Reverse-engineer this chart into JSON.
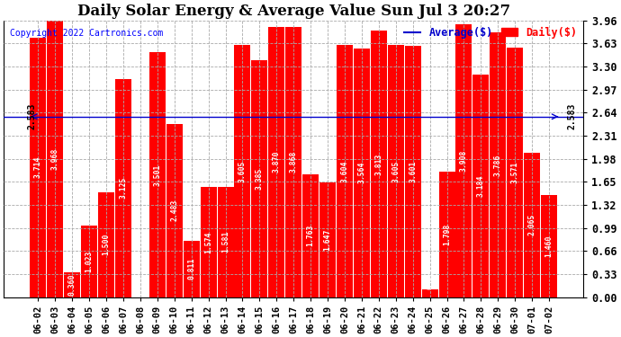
{
  "title": "Daily Solar Energy & Average Value Sun Jul 3 20:27",
  "copyright": "Copyright 2022 Cartronics.com",
  "legend_avg": "Average($)",
  "legend_daily": "Daily($)",
  "average_value": 2.583,
  "categories": [
    "06-02",
    "06-03",
    "06-04",
    "06-05",
    "06-06",
    "06-07",
    "06-08",
    "06-09",
    "06-10",
    "06-11",
    "06-12",
    "06-13",
    "06-14",
    "06-15",
    "06-16",
    "06-17",
    "06-18",
    "06-19",
    "06-20",
    "06-21",
    "06-22",
    "06-23",
    "06-24",
    "06-25",
    "06-26",
    "06-27",
    "06-28",
    "06-29",
    "06-30",
    "07-01",
    "07-02"
  ],
  "values": [
    3.714,
    3.968,
    0.36,
    1.023,
    1.5,
    3.125,
    0.0,
    3.501,
    2.483,
    0.811,
    1.574,
    1.581,
    3.605,
    3.385,
    3.87,
    3.868,
    1.763,
    1.647,
    3.604,
    3.564,
    3.813,
    3.605,
    3.601,
    0.114,
    1.798,
    3.908,
    3.184,
    3.786,
    3.571,
    2.065,
    1.46
  ],
  "bar_color": "#ff0000",
  "avg_line_color": "#0000cc",
  "background_color": "#ffffff",
  "plot_bg_color": "#ffffff",
  "grid_color": "#aaaaaa",
  "ylim": [
    0.0,
    3.96
  ],
  "yticks": [
    0.0,
    0.33,
    0.66,
    0.99,
    1.32,
    1.65,
    1.98,
    2.31,
    2.64,
    2.97,
    3.3,
    3.63,
    3.96
  ],
  "value_fontsize": 5.8,
  "title_fontsize": 12,
  "tick_fontsize": 8.5,
  "avg_label_fontsize": 7,
  "copyright_fontsize": 7,
  "legend_fontsize": 8.5
}
